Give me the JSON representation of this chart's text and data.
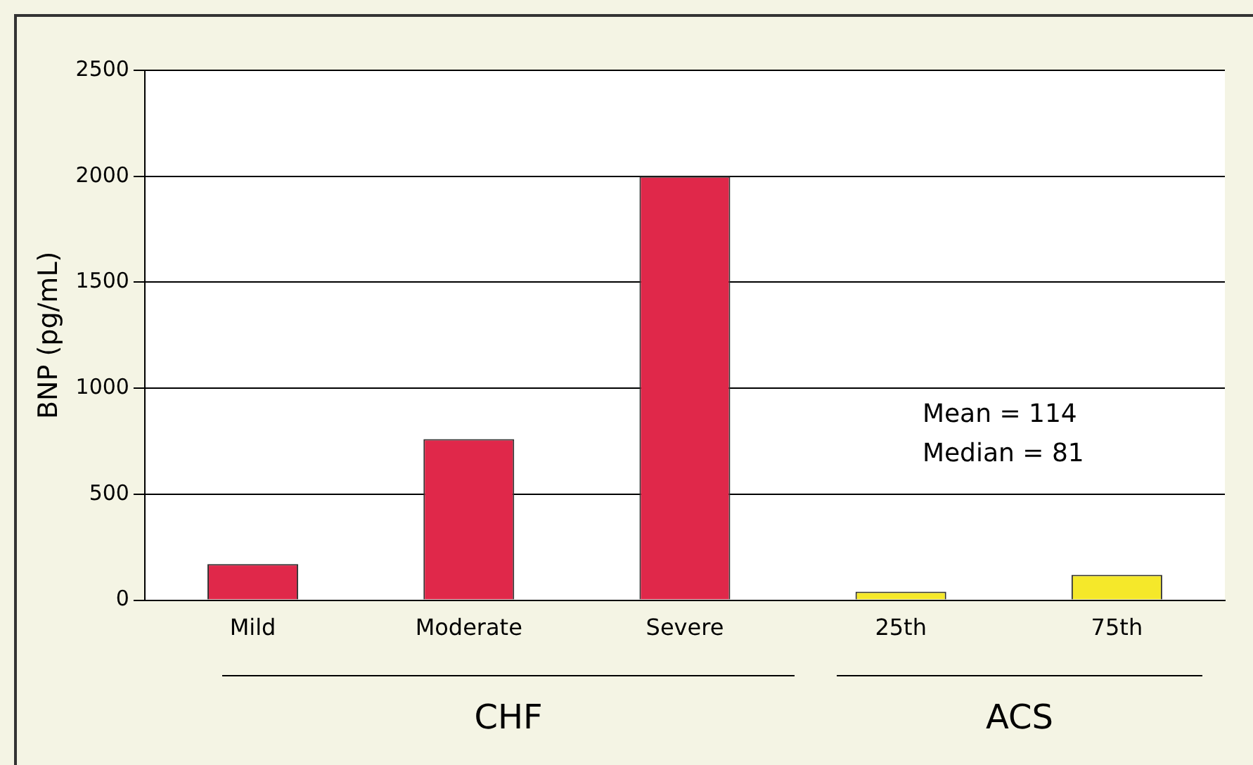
{
  "chart_data": {
    "type": "bar",
    "ylabel": "BNP (pg/mL)",
    "categories": [
      "Mild",
      "Moderate",
      "Severe",
      "25th",
      "75th"
    ],
    "values": [
      170,
      760,
      2000,
      40,
      120
    ],
    "colors": [
      "#e0284a",
      "#e0284a",
      "#e0284a",
      "#f5e82a",
      "#f5e82a"
    ],
    "ylim": [
      0,
      2500
    ],
    "yticks": [
      0,
      500,
      1000,
      1500,
      2000,
      2500
    ],
    "grid": "y",
    "annotations": [
      "Mean = 114",
      "Median = 81",
      "CHF",
      "ACS"
    ]
  }
}
